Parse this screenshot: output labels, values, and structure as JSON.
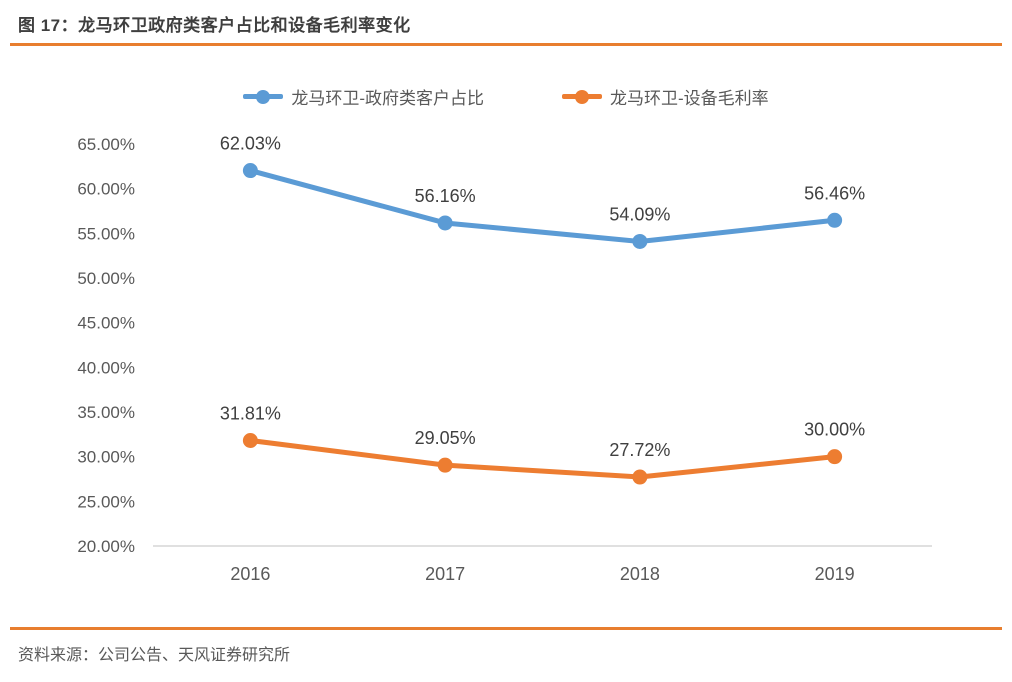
{
  "header": {
    "title": "图 17：龙马环卫政府类客户占比和设备毛利率变化"
  },
  "footer": {
    "source": "资料来源：公司公告、天风证券研究所"
  },
  "colors": {
    "accent_rule_orange": "#e87e2e",
    "series_blue": "#5b9bd5",
    "series_orange": "#ed7d31",
    "axis_line_gray": "#d6d6d6",
    "axis_text_gray": "#595959",
    "data_label_gray": "#404040",
    "title_gray": "#3f3f3f"
  },
  "chart_data": {
    "type": "line",
    "categories": [
      "2016",
      "2017",
      "2018",
      "2019"
    ],
    "series": [
      {
        "name": "龙马环卫-政府类客户占比",
        "color": "#5b9bd5",
        "values": [
          62.03,
          56.16,
          54.09,
          56.46
        ],
        "labels": [
          "62.03%",
          "56.16%",
          "54.09%",
          "56.46%"
        ]
      },
      {
        "name": "龙马环卫-设备毛利率",
        "color": "#ed7d31",
        "values": [
          31.81,
          29.05,
          27.72,
          30.0
        ],
        "labels": [
          "31.81%",
          "29.05%",
          "27.72%",
          "30.00%"
        ]
      }
    ],
    "ylim": [
      20,
      65
    ],
    "ytick_step": 5,
    "ytick_labels": [
      "20.00%",
      "25.00%",
      "30.00%",
      "35.00%",
      "40.00%",
      "45.00%",
      "50.00%",
      "55.00%",
      "60.00%",
      "65.00%"
    ],
    "grid": false,
    "legend_position": "top",
    "marker": "circle",
    "data_labels": "above-points"
  }
}
